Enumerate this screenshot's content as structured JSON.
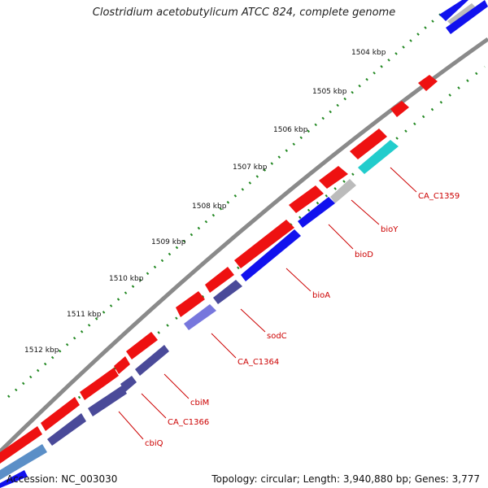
{
  "title": "Clostridium acetobutylicum ATCC 824, complete genome",
  "accession": "Accession: NC_003030",
  "topology": "Topology: circular; Length: 3,940,880 bp; Genes: 3,777",
  "ticks": [
    "1504 kbp",
    "1505 kbp",
    "1506 kbp",
    "1507 kbp",
    "1508 kbp",
    "1509 kbp",
    "1510 kbp",
    "1511 kbp",
    "1512 kbp"
  ],
  "gene_labels": [
    "CA_C1359",
    "bioY",
    "bioD",
    "bioA",
    "sodC",
    "CA_C1364",
    "cbiM",
    "CA_C1366",
    "cbiQ"
  ],
  "colors": {
    "backbone": "#8a8a8a",
    "forward_feature": "#ee1111",
    "cds_blue": "#1111ee",
    "cds_dark": "#4a4a99",
    "cds_light": "#7777dd",
    "cds_cyan": "#22cccc",
    "cds_grey": "#bbbbbb",
    "tick_dots": "#228822",
    "label_text": "#cc0000"
  }
}
